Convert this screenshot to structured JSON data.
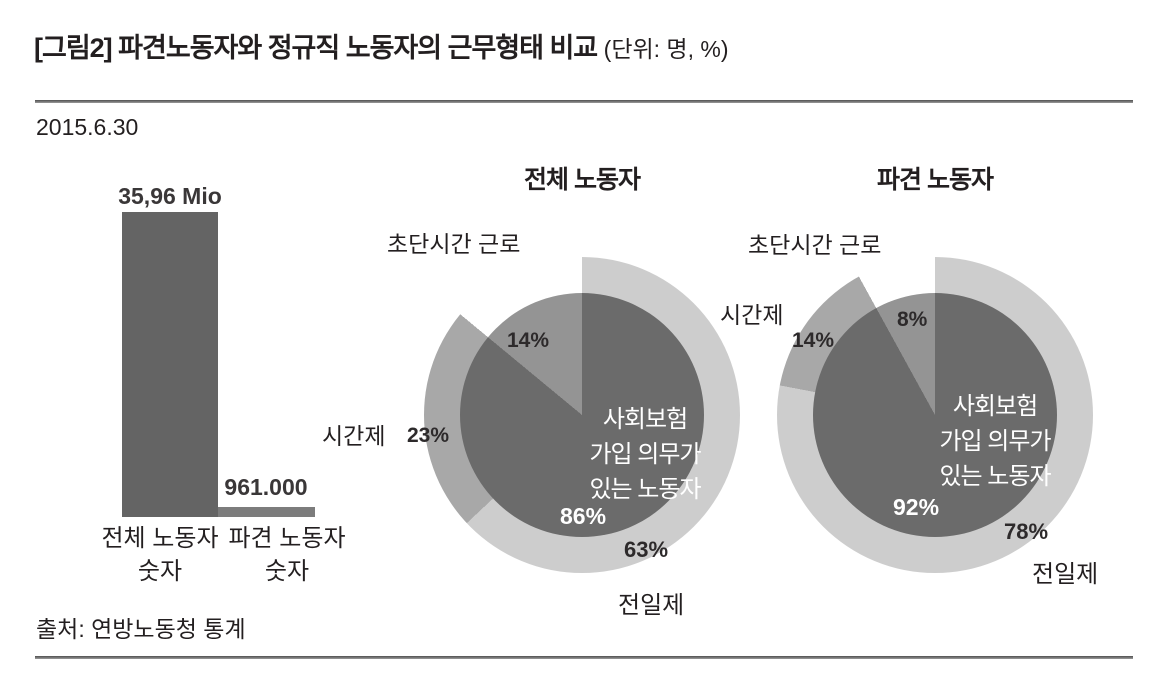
{
  "header": {
    "title": "[그림2] 파견노동자와 정규직 노동자의 근무형태 비교",
    "unit_note": "(단위: 명, %)",
    "date": "2015.6.30"
  },
  "footer": {
    "source": "출처: 연방노동청 통계"
  },
  "colors": {
    "bar_dark": "#646464",
    "bar_light": "#7c7c7c",
    "ring_light": "#cdcdcd",
    "ring_medium": "#a8a8a8",
    "ring_white": "#ffffff",
    "pie_dark": "#6b6b6b",
    "pie_medium": "#949494",
    "text": "#231f20",
    "rule": "#7f7f7f"
  },
  "chart_data": [
    {
      "type": "bar",
      "title": "",
      "categories": [
        "전체 노동자 숫자",
        "파견 노동자 숫자"
      ],
      "values_mio": [
        35.96,
        0.961
      ],
      "bars": [
        {
          "value_mio": 35.96,
          "value_label": "35,96 Mio",
          "category_lines": [
            "전체 노동자",
            "숫자"
          ],
          "color_key": "bar_dark"
        },
        {
          "value_mio": 0.961,
          "value_label": "961.000",
          "category_lines": [
            "파견 노동자",
            "숫자"
          ],
          "color_key": "bar_light"
        }
      ]
    },
    {
      "type": "donut",
      "title": "전체 노동자",
      "outer_ring_segments": [
        {
          "label": "전일제",
          "value": 63,
          "pct_label": "63%",
          "color_key": "ring_light"
        },
        {
          "label": "시간제",
          "value": 23,
          "pct_label": "23%",
          "color_key": "ring_medium"
        },
        {
          "label": "초단시간 근로",
          "value": 14,
          "pct_label": "",
          "color_key": "ring_white"
        }
      ],
      "inner_pie_segments": [
        {
          "label": "사회보험 가입 의무가 있는 노동자",
          "value": 86,
          "pct_label": "86%",
          "color_key": "pie_dark"
        },
        {
          "label": "",
          "value": 14,
          "pct_label": "14%",
          "color_key": "pie_medium"
        }
      ],
      "center_label_lines": [
        "사회보험",
        "가입 의무가",
        "있는 노동자"
      ]
    },
    {
      "type": "donut",
      "title": "파견 노동자",
      "outer_ring_segments": [
        {
          "label": "전일제",
          "value": 78,
          "pct_label": "78%",
          "color_key": "ring_light"
        },
        {
          "label": "시간제",
          "value": 14,
          "pct_label": "14%",
          "color_key": "ring_medium"
        },
        {
          "label": "초단시간 근로",
          "value": 8,
          "pct_label": "",
          "color_key": "ring_white"
        }
      ],
      "inner_pie_segments": [
        {
          "label": "사회보험 가입 의무가 있는 노동자",
          "value": 92,
          "pct_label": "92%",
          "color_key": "pie_dark"
        },
        {
          "label": "",
          "value": 8,
          "pct_label": "8%",
          "color_key": "pie_medium"
        }
      ],
      "center_label_lines": [
        "사회보험",
        "가입 의무가",
        "있는 노동자"
      ]
    }
  ]
}
